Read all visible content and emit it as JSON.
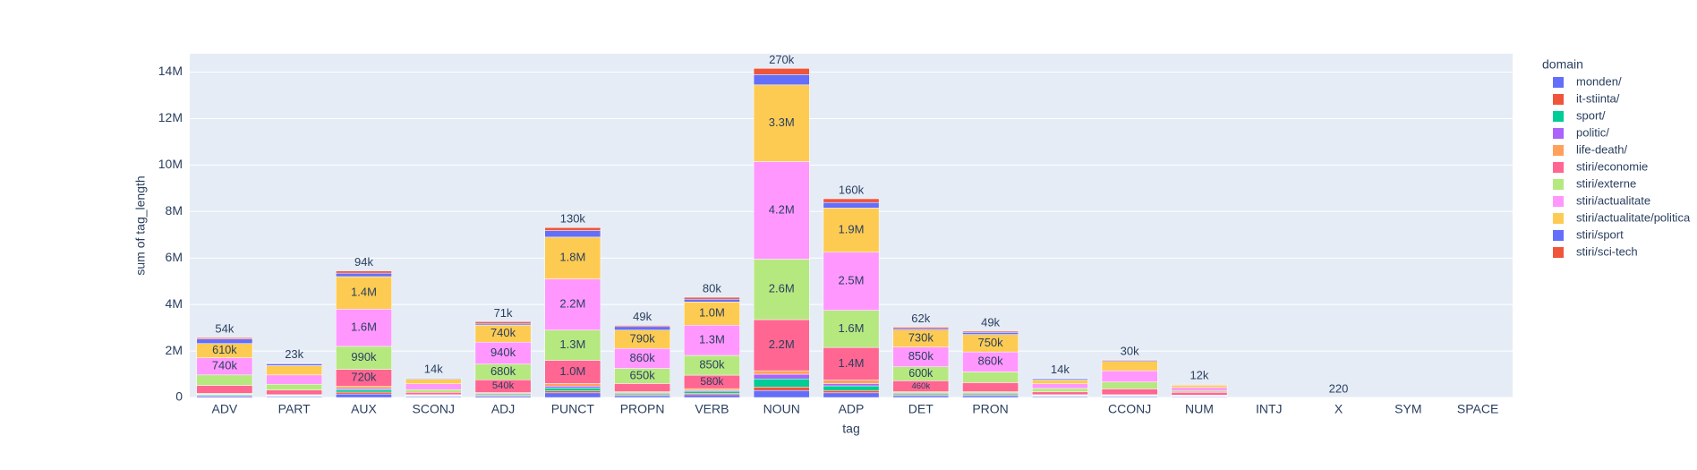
{
  "chart_data": {
    "type": "stacked_bar",
    "x_label": "tag",
    "y_label": "sum of tag_length",
    "legend_title": "domain",
    "legend_position": "right",
    "grid": true,
    "categories": [
      "ADV",
      "PART",
      "AUX",
      "SCONJ",
      "ADJ",
      "PUNCT",
      "PROPN",
      "VERB",
      "NOUN",
      "ADP",
      "DET",
      "PRON",
      null,
      "CCONJ",
      "NUM",
      "INTJ",
      "X",
      "SYM",
      "SPACE"
    ],
    "ylim": [
      0,
      14790000
    ],
    "yticks": [
      0,
      {
        "value": 2000000,
        "label": "2M"
      },
      {
        "value": 4000000,
        "label": "4M"
      },
      {
        "value": 6000000,
        "label": "6M"
      },
      {
        "value": 8000000,
        "label": "8M"
      },
      {
        "value": 10000000,
        "label": "10M"
      },
      {
        "value": 12000000,
        "label": "12M"
      },
      {
        "value": 14000000,
        "label": "14M"
      }
    ],
    "series": [
      {
        "name": "monden/",
        "color": "#636efa",
        "values": [
          60000,
          40000,
          150000,
          40000,
          60000,
          200000,
          80000,
          120000,
          300000,
          200000,
          80000,
          80000,
          40000,
          40000,
          30000,
          1000,
          60,
          500,
          300
        ]
      },
      {
        "name": "it-stiinta/",
        "color": "#EF553B",
        "values": [
          30000,
          20000,
          80000,
          20000,
          40000,
          80000,
          40000,
          60000,
          150000,
          100000,
          40000,
          40000,
          20000,
          20000,
          20000,
          500,
          30,
          300,
          200
        ]
      },
      {
        "name": "sport/",
        "color": "#00cc96",
        "values": [
          40000,
          30000,
          100000,
          30000,
          50000,
          130000,
          60000,
          90000,
          350000,
          200000,
          60000,
          60000,
          30000,
          30000,
          20000,
          700,
          40,
          400,
          200
        ]
      },
      {
        "name": "politic/",
        "color": "#ab63fa",
        "values": [
          20000,
          10000,
          60000,
          10000,
          30000,
          80000,
          30000,
          40000,
          200000,
          100000,
          30000,
          30000,
          10000,
          10000,
          10000,
          300,
          20,
          200,
          100
        ]
      },
      {
        "name": "life-death/",
        "color": "#FFA15A",
        "values": [
          30000,
          20000,
          100000,
          20000,
          40000,
          110000,
          50000,
          70000,
          150000,
          150000,
          50000,
          50000,
          20000,
          20000,
          20000,
          500,
          30,
          300,
          200
        ]
      },
      {
        "name": "stiri/economie",
        "color": "#FF6692",
        "values": [
          340000,
          200000,
          720000,
          100000,
          540000,
          1000000,
          340000,
          580000,
          2200000,
          1400000,
          460000,
          380000,
          120000,
          250000,
          120000,
          1000,
          100,
          600,
          400
        ],
        "value_labels": [
          null,
          null,
          "720k",
          null,
          "540k",
          "1.0M",
          null,
          "580k",
          "2.2M",
          "1.4M",
          "460k",
          null,
          null,
          null,
          null,
          null,
          null,
          null,
          null
        ]
      },
      {
        "name": "stiri/externe",
        "color": "#B6E880",
        "values": [
          450000,
          250000,
          990000,
          120000,
          680000,
          1300000,
          650000,
          850000,
          2600000,
          1600000,
          600000,
          460000,
          150000,
          300000,
          60000,
          800,
          80,
          500,
          300
        ],
        "value_labels": [
          null,
          null,
          "990k",
          null,
          "680k",
          "1.3M",
          "650k",
          "850k",
          "2.6M",
          "1.6M",
          "600k",
          null,
          null,
          null,
          null,
          null,
          null,
          null,
          null
        ]
      },
      {
        "name": "stiri/actualitate",
        "color": "#FF97FF",
        "values": [
          740000,
          400000,
          1600000,
          250000,
          940000,
          2200000,
          860000,
          1300000,
          4200000,
          2500000,
          850000,
          860000,
          200000,
          480000,
          150000,
          1500,
          150,
          900,
          500
        ],
        "value_labels": [
          "740k",
          null,
          "1.6M",
          null,
          "940k",
          "2.2M",
          "860k",
          "1.3M",
          "4.2M",
          "2.5M",
          "850k",
          "860k",
          null,
          null,
          null,
          null,
          null,
          null,
          null
        ]
      },
      {
        "name": "stiri/actualitate/politica",
        "color": "#FECB52",
        "values": [
          610000,
          400000,
          1400000,
          200000,
          740000,
          1800000,
          790000,
          1000000,
          3300000,
          1900000,
          730000,
          750000,
          160000,
          400000,
          100000,
          1200,
          120,
          800,
          400
        ],
        "value_labels": [
          "610k",
          null,
          "1.4M",
          null,
          "740k",
          "1.8M",
          "790k",
          "1.0M",
          "3.3M",
          "1.9M",
          "730k",
          "750k",
          null,
          null,
          null,
          null,
          null,
          null,
          null
        ]
      },
      {
        "name": "stiri/sport",
        "color": "#636efa",
        "values": [
          200000,
          80000,
          150000,
          40000,
          70000,
          280000,
          150000,
          120000,
          440000,
          240000,
          60000,
          90000,
          60000,
          40000,
          30000,
          300,
          40,
          200,
          100
        ]
      },
      {
        "name": "stiri/sci-tech",
        "color": "#EF553B",
        "values": [
          54000,
          23000,
          94000,
          14000,
          71000,
          130000,
          49000,
          80000,
          270000,
          160000,
          62000,
          49000,
          14000,
          30000,
          12000,
          null,
          220,
          null,
          null
        ],
        "value_labels": [
          "54k",
          "23k",
          "94k",
          "14k",
          "71k",
          "130k",
          "49k",
          "80k",
          "270k",
          "160k",
          "62k",
          "49k",
          "14k",
          "30k",
          "12k",
          null,
          "220",
          null,
          null
        ],
        "labels_outside": true
      }
    ]
  }
}
